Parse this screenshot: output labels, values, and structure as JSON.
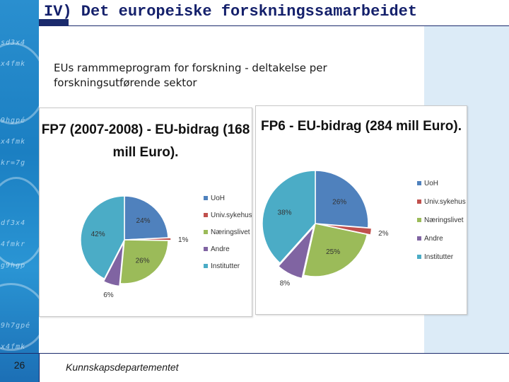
{
  "slide": {
    "title": "IV) Det europeiske forskningssamarbeidet",
    "subtitle_line1": "EUs rammmeprogram for forskning - deltakelse per",
    "subtitle_line2": "forskningsutførende sektor",
    "page_number": "26",
    "footer": "Kunnskapsdepartementet"
  },
  "colors": {
    "title_navy": "#14206b",
    "strip_blue": "#2a8fcf",
    "right_panel": "#dcebf7"
  },
  "chart_data": [
    {
      "type": "pie",
      "title_line1": "FP7 (2007-2008) - EU-bidrag (168",
      "title_line2": "mill Euro).",
      "legend_placement": "right",
      "slices": [
        {
          "name": "UoH",
          "value": 24,
          "label": "24%",
          "color": "#4f81bd"
        },
        {
          "name": "Univ.sykehus",
          "value": 1,
          "label": "1%",
          "color": "#c0504d"
        },
        {
          "name": "Næringslivet",
          "value": 26,
          "label": "26%",
          "color": "#9bbb59"
        },
        {
          "name": "Andre",
          "value": 6,
          "label": "6%",
          "color": "#8064a2"
        },
        {
          "name": "Institutter",
          "value": 42,
          "label": "42%",
          "color": "#4bacc6"
        }
      ]
    },
    {
      "type": "pie",
      "title_line1": "FP6 - EU-bidrag (284 mill Euro).",
      "title_line2": "",
      "legend_placement": "right",
      "slices": [
        {
          "name": "UoH",
          "value": 26,
          "label": "26%",
          "color": "#4f81bd"
        },
        {
          "name": "Univ.sykehus",
          "value": 2,
          "label": "2%",
          "color": "#c0504d"
        },
        {
          "name": "Næringslivet",
          "value": 25,
          "label": "25%",
          "color": "#9bbb59"
        },
        {
          "name": "Andre",
          "value": 8,
          "label": "8%",
          "color": "#8064a2"
        },
        {
          "name": "Institutter",
          "value": 38,
          "label": "38%",
          "color": "#4bacc6"
        }
      ]
    }
  ]
}
